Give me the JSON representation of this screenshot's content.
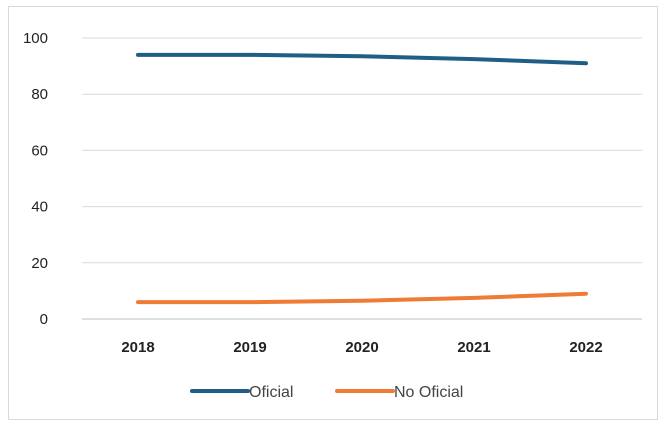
{
  "chart_data": {
    "type": "line",
    "categories": [
      "2018",
      "2019",
      "2020",
      "2021",
      "2022"
    ],
    "series": [
      {
        "name": "Oficial",
        "values": [
          94,
          94,
          93.5,
          92.5,
          91
        ],
        "color": "#1f5f86"
      },
      {
        "name": "No Oficial",
        "values": [
          6,
          6,
          6.5,
          7.5,
          9
        ],
        "color": "#ee7b36"
      }
    ],
    "ylim": [
      0,
      100
    ],
    "yticks": [
      0,
      20,
      40,
      60,
      80,
      100
    ],
    "grid": true,
    "legend_position": "bottom"
  }
}
